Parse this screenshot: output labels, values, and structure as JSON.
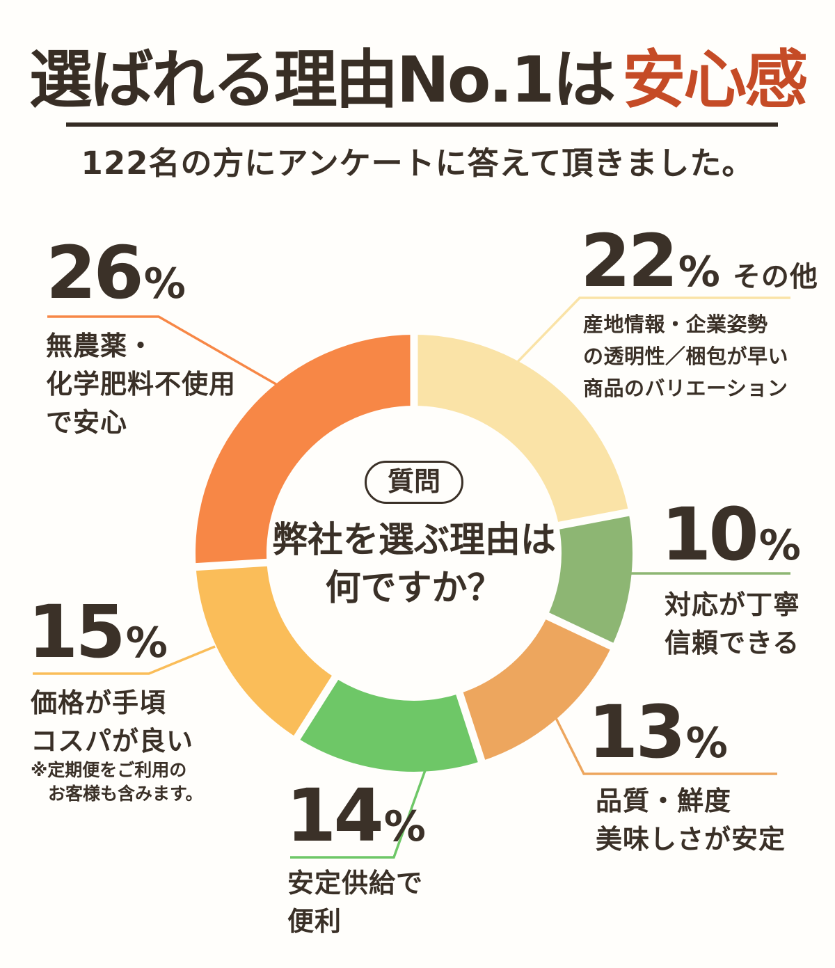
{
  "page": {
    "background": "#FFFEFB",
    "text_color": "#3A3027"
  },
  "header": {
    "title_main": "選ばれる理由No.1は",
    "title_accent": "安心感",
    "accent_color": "#C54B26",
    "subtitle": "122名の方にアンケートに答えて頂きました。"
  },
  "question": {
    "badge": "質問",
    "line1": "弊社を選ぶ理由は",
    "line2": "何ですか？"
  },
  "chart_data": {
    "type": "pie",
    "donut": true,
    "title": "弊社を選ぶ理由は何ですか？",
    "subtitle": "122名の方にアンケートに答えて頂きました。",
    "sample_size": 122,
    "start_angle_deg": 0,
    "direction": "clockwise",
    "percent_sign": "%",
    "segments": [
      {
        "pct": 22,
        "color": "#FAE3A7",
        "label": "その他",
        "sublabel_lines": [
          "産地情報・企業姿勢",
          "の透明性／梱包が早い",
          "商品のバリエーション"
        ]
      },
      {
        "pct": 10,
        "color": "#8DB673",
        "label_lines": [
          "対応が丁寧",
          "信頼できる"
        ]
      },
      {
        "pct": 13,
        "color": "#EDA65E",
        "label_lines": [
          "品質・鮮度",
          "美味しさが安定"
        ]
      },
      {
        "pct": 14,
        "color": "#6EC767",
        "label_lines": [
          "安定供給で",
          "便利"
        ]
      },
      {
        "pct": 15,
        "color": "#FABD59",
        "label_lines": [
          "価格が手頃",
          "コスパが良い"
        ],
        "note_lines": [
          "※定期便をご利用の",
          "お客様も含みます。"
        ]
      },
      {
        "pct": 26,
        "color": "#F78746",
        "label_lines": [
          "無農薬・",
          "化学肥料不使用",
          "で安心"
        ]
      }
    ]
  }
}
